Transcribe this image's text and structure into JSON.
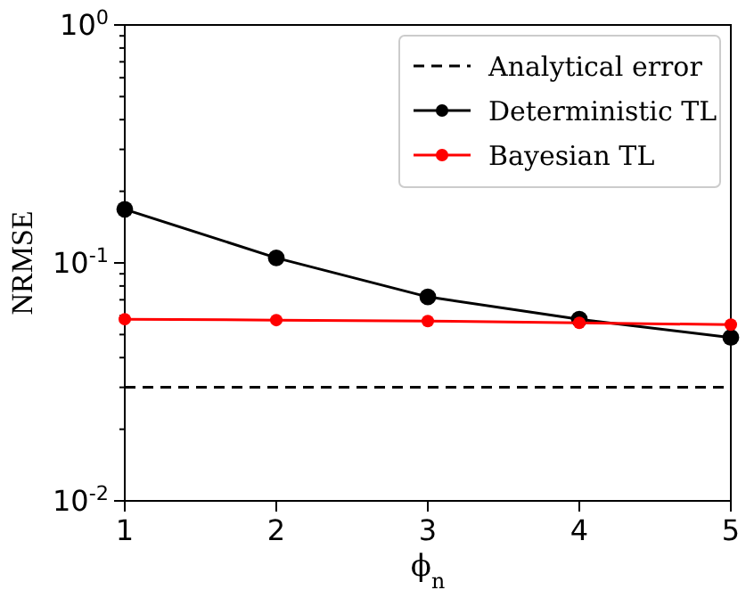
{
  "chart_data": {
    "type": "line",
    "xlabel": "ϕ$_{n}$",
    "ylabel": "NRMSE",
    "x": [
      1,
      2,
      3,
      4,
      5
    ],
    "series": [
      {
        "name": "Analytical error",
        "color": "#000000",
        "line_style": "dashed",
        "marker": "none",
        "x": [
          1,
          5
        ],
        "values": [
          0.03,
          0.03
        ]
      },
      {
        "name": "Deterministic TL",
        "color": "#000000",
        "marker": "circle",
        "values": [
          0.168,
          0.105,
          0.072,
          0.058,
          0.0486
        ]
      },
      {
        "name": "Bayesian TL",
        "color": "#ff0000",
        "marker": "circle",
        "values": [
          0.058,
          0.0575,
          0.057,
          0.056,
          0.055
        ]
      }
    ],
    "xlim": [
      1,
      5
    ],
    "xticks": [
      1,
      2,
      3,
      4,
      5
    ],
    "ylim": [
      0.01,
      1
    ],
    "yticks": [
      {
        "value": 0.01,
        "label": "10$^{-2}$"
      },
      {
        "value": 0.1,
        "label": "10$^{-1}$"
      },
      {
        "value": 1,
        "label": "10$^{0}$"
      }
    ],
    "log": "y",
    "legend": "top right",
    "grid": false
  }
}
